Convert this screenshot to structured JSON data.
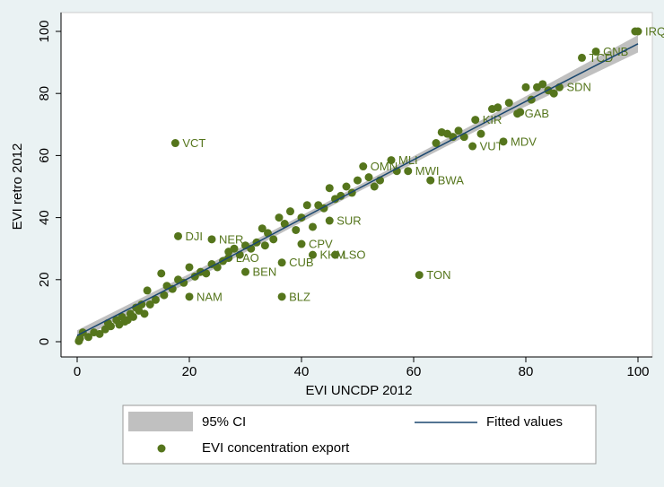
{
  "chart_data": {
    "type": "scatter",
    "xlabel": "EVI UNCDP 2012",
    "ylabel": "EVI retro 2012",
    "xlim": [
      0,
      100
    ],
    "ylim": [
      0,
      100
    ],
    "xticks": [
      0,
      20,
      40,
      60,
      80,
      100
    ],
    "yticks": [
      0,
      20,
      40,
      60,
      80,
      100
    ],
    "ci": {
      "name": "95% CI",
      "color": "#c0c0c0",
      "x": [
        0,
        25,
        50,
        75,
        100
      ],
      "lower": [
        0.3,
        24,
        48.2,
        71.5,
        93.2
      ],
      "upper": [
        3.7,
        26.4,
        50.2,
        74.2,
        98.8
      ]
    },
    "fitted": {
      "name": "Fitted values",
      "color": "#1a476f",
      "x": [
        0,
        25,
        50,
        75,
        100
      ],
      "y": [
        2,
        25.2,
        49.2,
        72.8,
        96
      ]
    },
    "series": [
      {
        "name": "EVI concentration export",
        "color": "#55751c",
        "x": [
          100,
          92.5,
          90,
          86,
          78.5,
          76,
          70.5,
          71,
          63,
          59,
          51,
          56,
          45,
          46,
          42,
          40,
          20,
          17.5,
          18,
          24,
          61,
          36.5,
          30,
          36.5,
          27,
          0.3,
          0.5,
          1,
          2,
          3,
          4,
          5,
          5.5,
          6,
          7,
          7.5,
          8,
          8.5,
          9,
          9.5,
          10,
          10.5,
          11,
          11.5,
          12,
          12.5,
          13,
          14,
          15,
          15.5,
          16,
          17,
          18,
          19,
          20,
          21,
          22,
          23,
          24,
          25,
          26,
          27,
          28,
          29,
          30,
          31,
          32,
          33,
          33.5,
          34,
          35,
          36,
          37,
          38,
          39,
          40,
          41,
          42,
          43,
          44,
          45,
          46,
          47,
          48,
          49,
          50,
          52,
          53,
          54,
          57,
          64,
          65,
          66,
          67,
          68,
          69,
          72,
          74,
          75,
          77,
          79,
          80,
          81,
          82,
          83,
          84,
          85,
          99.5
        ],
        "y": [
          100,
          93.5,
          91.5,
          82,
          73.5,
          64.5,
          63,
          71.5,
          52,
          55,
          56.5,
          58.5,
          39,
          28,
          28,
          31.5,
          14.5,
          64,
          34,
          33,
          21.5,
          14.5,
          22.5,
          25.5,
          27,
          0.2,
          1,
          3,
          1.5,
          3,
          2.5,
          4,
          6,
          5,
          7,
          5.5,
          8,
          6.5,
          7,
          9,
          8,
          11,
          10,
          12,
          9,
          16.5,
          12,
          13.5,
          22,
          15,
          18,
          17,
          20,
          19,
          24,
          21,
          22.5,
          22,
          25,
          24,
          26,
          29,
          30,
          28,
          31,
          30,
          32,
          36.5,
          31,
          35,
          33,
          40,
          38,
          42,
          36,
          40,
          44,
          37,
          44,
          43,
          49.5,
          46,
          47,
          50,
          48,
          52,
          53,
          50,
          52,
          55,
          64,
          67.5,
          67,
          66,
          68,
          66,
          67,
          75,
          75.5,
          77,
          74,
          82,
          78,
          82,
          83,
          81,
          80,
          100
        ],
        "labels": [
          "IRQ",
          "GNB",
          "TCD",
          "SDN",
          "GAB",
          "MDV",
          "VUT",
          "KIR",
          "BWA",
          "MWI",
          "OMN",
          "MLI",
          "SUR",
          "LSO",
          "KHM",
          "CPV",
          "NAM",
          "VCT",
          "DJI",
          "NER",
          "TON",
          "BLZ",
          "BEN",
          "CUB",
          "LAO",
          null,
          null,
          null,
          null,
          null,
          null,
          null,
          null,
          null,
          null,
          null,
          null,
          null,
          null,
          null,
          null,
          null,
          null,
          null,
          null,
          null,
          null,
          null,
          null,
          null,
          null,
          null,
          null,
          null,
          null,
          null,
          null,
          null,
          null,
          null,
          null,
          null,
          null,
          null,
          null,
          null,
          null,
          null,
          null,
          null,
          null,
          null,
          null,
          null,
          null,
          null,
          null,
          null,
          null,
          null,
          null,
          null,
          null,
          null,
          null,
          null,
          null,
          null,
          null,
          null,
          null,
          null,
          null,
          null,
          null,
          null,
          null,
          null,
          null,
          null,
          null,
          null,
          null,
          null,
          null,
          null,
          null,
          null,
          null
        ]
      }
    ]
  }
}
